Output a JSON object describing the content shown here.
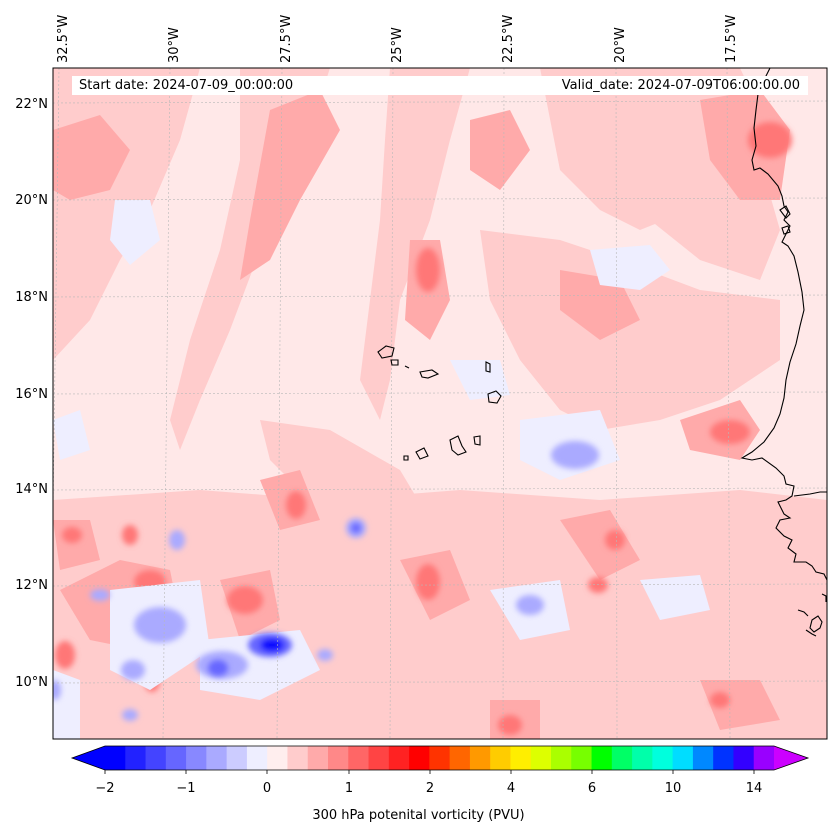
{
  "map": {
    "start_date": "Start date: 2024-07-09_00:00:00",
    "valid_date": "Valid_date: 2024-07-09T06:00:00.00",
    "lon_labels": [
      "32.5°W",
      "30°W",
      "27.5°W",
      "25°W",
      "22.5°W",
      "20°W",
      "17.5°W"
    ],
    "lat_labels": [
      "22°N",
      "20°N",
      "18°N",
      "16°N",
      "14°N",
      "12°N",
      "10°N"
    ],
    "gridlines": true
  },
  "colorbar": {
    "label": "300 hPa potenital vorticity (PVU)",
    "tick_labels": [
      "−2",
      "−1",
      "0",
      "1",
      "2",
      "4",
      "6",
      "10",
      "14"
    ],
    "levels": [
      -2.0,
      -1.75,
      -1.5,
      -1.25,
      -1.0,
      -0.75,
      -0.5,
      -0.25,
      0.0,
      0.25,
      0.5,
      0.75,
      1.0,
      1.25,
      1.5,
      1.75,
      2.0,
      2.5,
      3.0,
      3.5,
      4.0,
      4.5,
      5.0,
      5.5,
      6.0,
      7.0,
      8.0,
      9.0,
      10.0,
      11.0,
      12.0,
      13.0,
      14.0,
      15.0
    ],
    "colors": [
      "#0000ff",
      "#2222ff",
      "#4444ff",
      "#6666ff",
      "#8888ff",
      "#aaaaff",
      "#ccccff",
      "#eeeeff",
      "#ffeeee",
      "#ffcccc",
      "#ffaaaa",
      "#ff8888",
      "#ff6666",
      "#ff4444",
      "#ff2222",
      "#ff0000",
      "#ff3300",
      "#ff6600",
      "#ff9900",
      "#ffcc00",
      "#ffee00",
      "#ddff00",
      "#aaff00",
      "#77ff00",
      "#00ff00",
      "#00ff66",
      "#00ffaa",
      "#00ffdd",
      "#00ddff",
      "#0088ff",
      "#0033ff",
      "#3300ff",
      "#9900ff"
    ],
    "extend_min_color": "#0000ff",
    "extend_max_color": "#cc00ff"
  }
}
